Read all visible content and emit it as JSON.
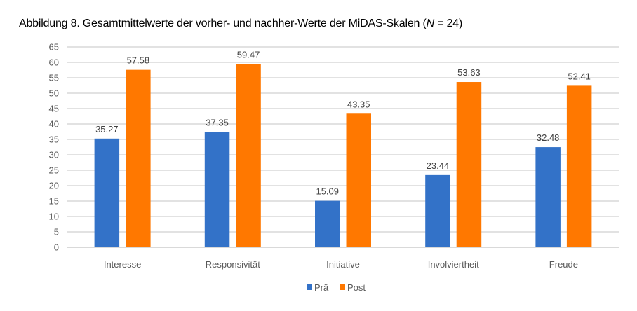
{
  "title": {
    "prefix": "Abbildung 8. Gesamtmittelwerte der vorher- und nachher-Werte der MiDAS-Skalen (",
    "n_symbol": "N",
    "suffix": " = 24)"
  },
  "chart_data": {
    "type": "bar",
    "title": "Abbildung 8. Gesamtmittelwerte der vorher- und nachher-Werte der MiDAS-Skalen (N = 24)",
    "xlabel": "",
    "ylabel": "",
    "categories": [
      "Interesse",
      "Responsivität",
      "Initiative",
      "Involviertheit",
      "Freude"
    ],
    "series": [
      {
        "name": "Prä",
        "color": "#3372C8",
        "values": [
          35.27,
          37.35,
          15.09,
          23.44,
          32.48
        ]
      },
      {
        "name": "Post",
        "color": "#FF7800",
        "values": [
          57.58,
          59.47,
          43.35,
          53.63,
          52.41
        ]
      }
    ],
    "ylim": [
      0,
      65
    ],
    "yticks": [
      0,
      5,
      10,
      15,
      20,
      25,
      30,
      35,
      40,
      45,
      50,
      55,
      60,
      65
    ],
    "grid": true,
    "data_labels": true,
    "legend": {
      "position": "bottom",
      "entries": [
        "Prä",
        "Post"
      ]
    }
  }
}
